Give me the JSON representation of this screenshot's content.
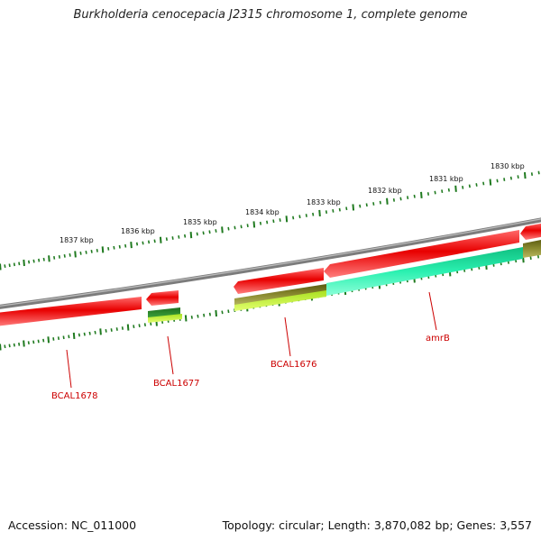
{
  "title": "Burkholderia cenocepacia J2315 chromosome 1, complete genome",
  "accession": "Accession: NC_011000",
  "topology": "Topology: circular; Length: 3,870,082 bp; Genes: 3,557",
  "colors": {
    "forward_gene": "#e80000",
    "backbone": "#8a8a8a",
    "ticks": "#1f7a1f",
    "labels": "#cc0000",
    "track_teal": "#1ee6a0",
    "track_olive": "#7a7a20",
    "track_green": "#2e8b2e",
    "track_lime": "#c8f030"
  },
  "ruler_labels": [
    "1837 kbp",
    "1836 kbp",
    "1835 kbp",
    "1834 kbp",
    "1833 kbp",
    "1832 kbp",
    "1831 kbp",
    "1830 kbp"
  ],
  "gene_labels": [
    "BCAL1678",
    "BCAL1677",
    "BCAL1676",
    "amrB"
  ]
}
